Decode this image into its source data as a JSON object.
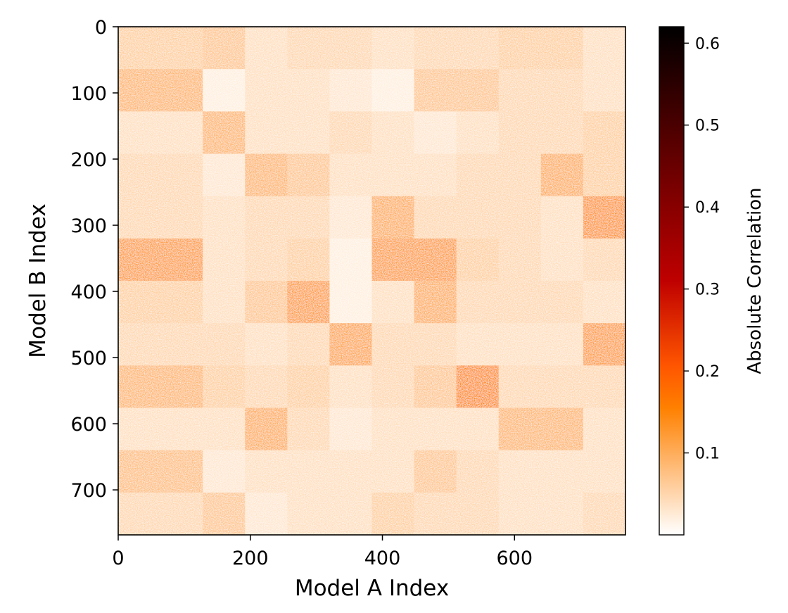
{
  "chart_data": {
    "type": "heatmap",
    "title": "",
    "xlabel": "Model A Index",
    "ylabel": "Model B Index",
    "xlim": [
      0,
      768
    ],
    "ylim": [
      768,
      0
    ],
    "x_ticks": [
      0,
      200,
      400,
      600
    ],
    "y_ticks": [
      0,
      100,
      200,
      300,
      400,
      500,
      600,
      700
    ],
    "block_size": 64,
    "grid_size": 12,
    "block_matrix_description": "Mean absolute correlation per 64x64 block; rows = Model B block, cols = Model A block",
    "block_means": [
      [
        0.06,
        0.06,
        0.07,
        0.04,
        0.05,
        0.05,
        0.04,
        0.05,
        0.05,
        0.06,
        0.06,
        0.04
      ],
      [
        0.09,
        0.09,
        0.02,
        0.04,
        0.04,
        0.03,
        0.02,
        0.07,
        0.07,
        0.05,
        0.05,
        0.04
      ],
      [
        0.04,
        0.04,
        0.09,
        0.04,
        0.04,
        0.05,
        0.04,
        0.03,
        0.04,
        0.05,
        0.05,
        0.06
      ],
      [
        0.05,
        0.05,
        0.03,
        0.09,
        0.07,
        0.04,
        0.04,
        0.04,
        0.05,
        0.05,
        0.1,
        0.06
      ],
      [
        0.05,
        0.05,
        0.04,
        0.05,
        0.05,
        0.03,
        0.1,
        0.05,
        0.05,
        0.05,
        0.04,
        0.13
      ],
      [
        0.12,
        0.12,
        0.04,
        0.05,
        0.06,
        0.02,
        0.12,
        0.12,
        0.06,
        0.05,
        0.04,
        0.05
      ],
      [
        0.06,
        0.06,
        0.04,
        0.07,
        0.12,
        0.02,
        0.04,
        0.1,
        0.05,
        0.05,
        0.05,
        0.04
      ],
      [
        0.05,
        0.05,
        0.05,
        0.04,
        0.05,
        0.11,
        0.05,
        0.05,
        0.04,
        0.04,
        0.04,
        0.12
      ],
      [
        0.09,
        0.09,
        0.06,
        0.05,
        0.06,
        0.04,
        0.05,
        0.07,
        0.14,
        0.05,
        0.05,
        0.05
      ],
      [
        0.04,
        0.04,
        0.04,
        0.1,
        0.05,
        0.03,
        0.04,
        0.04,
        0.04,
        0.09,
        0.09,
        0.04
      ],
      [
        0.08,
        0.08,
        0.03,
        0.04,
        0.04,
        0.04,
        0.04,
        0.07,
        0.05,
        0.04,
        0.04,
        0.04
      ],
      [
        0.05,
        0.05,
        0.07,
        0.03,
        0.04,
        0.04,
        0.06,
        0.05,
        0.05,
        0.04,
        0.04,
        0.05
      ]
    ],
    "colorbar": {
      "label": "Absolute Correlation",
      "colormap": "gist_heat_r",
      "min": 0.0,
      "max": 0.62,
      "ticks": [
        0.1,
        0.2,
        0.3,
        0.4,
        0.5,
        0.6
      ],
      "tick_labels": [
        "0.1",
        "0.2",
        "0.3",
        "0.4",
        "0.5",
        "0.6"
      ]
    },
    "grid": false,
    "legend": "none"
  }
}
